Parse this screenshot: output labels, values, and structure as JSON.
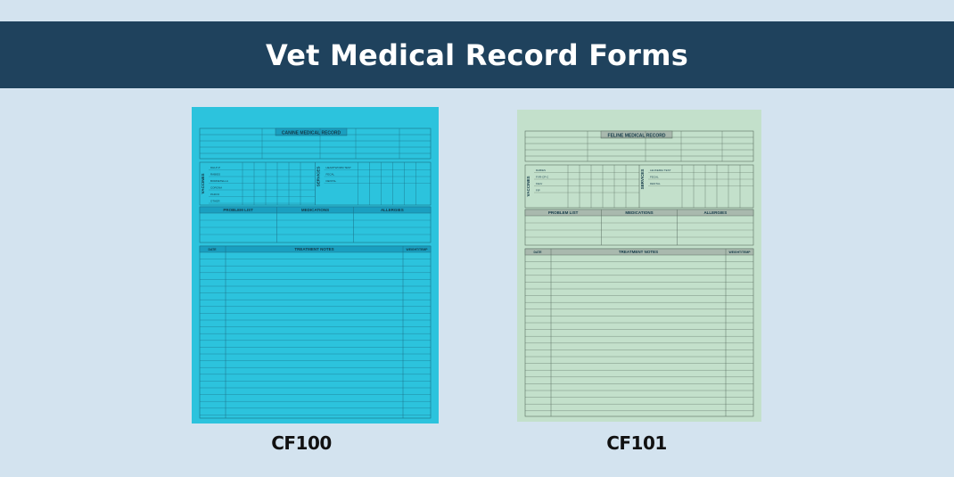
{
  "page": {
    "title": "Vet Medical Record Forms",
    "colors": {
      "banner": "#1f425d",
      "background": "#d3e3ef"
    }
  },
  "products": [
    {
      "code": "CF100",
      "form_title": "CANINE MEDICAL RECORD",
      "paper_color": "#2cc3dd",
      "line_color": "#1b6f86",
      "header_fill": "#1a9fc0",
      "vaccines_label": "VACCINES",
      "services_label": "SERVICES",
      "vaccine_items": [
        "DHLP-P",
        "RABIES",
        "BORDETELLA",
        "CORONA",
        "PARVO",
        "OTHER"
      ],
      "service_items": [
        "HEARTWORM TEST",
        "FECAL",
        "DENTAL"
      ],
      "sections": [
        "PROBLEM LIST",
        "MEDICATIONS",
        "ALLERGIES"
      ],
      "notes_headers": [
        "DATE",
        "TREATMENT NOTES",
        "WEIGHT/TEMP"
      ]
    },
    {
      "code": "CF101",
      "form_title": "FELINE MEDICAL RECORD",
      "paper_color": "#c3e0cb",
      "line_color": "#5a6e62",
      "header_fill": "#a9b9ae",
      "vaccines_label": "VACCINES",
      "services_label": "SERVICES",
      "vaccine_items": [
        "RABIES",
        "FVR-CP-C",
        "FELV",
        "FIP"
      ],
      "service_items": [
        "LEUKEMIA TEST",
        "FECAL",
        "DENTAL"
      ],
      "sections": [
        "PROBLEM LIST",
        "MEDICATIONS",
        "ALLERGIES"
      ],
      "notes_headers": [
        "DATE",
        "TREATMENT NOTES",
        "WEIGHT/TEMP"
      ]
    }
  ]
}
